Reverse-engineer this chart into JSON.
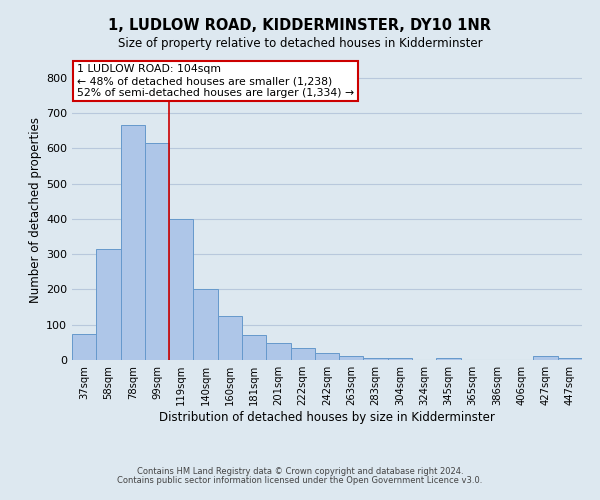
{
  "title": "1, LUDLOW ROAD, KIDDERMINSTER, DY10 1NR",
  "subtitle": "Size of property relative to detached houses in Kidderminster",
  "xlabel": "Distribution of detached houses by size in Kidderminster",
  "ylabel": "Number of detached properties",
  "categories": [
    "37sqm",
    "58sqm",
    "78sqm",
    "99sqm",
    "119sqm",
    "140sqm",
    "160sqm",
    "181sqm",
    "201sqm",
    "222sqm",
    "242sqm",
    "263sqm",
    "283sqm",
    "304sqm",
    "324sqm",
    "345sqm",
    "365sqm",
    "386sqm",
    "406sqm",
    "427sqm",
    "447sqm"
  ],
  "values": [
    75,
    315,
    665,
    615,
    400,
    200,
    125,
    70,
    48,
    35,
    20,
    12,
    7,
    5,
    0,
    7,
    0,
    0,
    0,
    10,
    5
  ],
  "bar_color": "#aec6e8",
  "bar_edge_color": "#6699cc",
  "grid_color": "#b8c8dc",
  "bg_color": "#dde8f0",
  "annotation_line1": "1 LUDLOW ROAD: 104sqm",
  "annotation_line2": "← 48% of detached houses are smaller (1,238)",
  "annotation_line3": "52% of semi-detached houses are larger (1,334) →",
  "annotation_box_color": "white",
  "annotation_border_color": "#cc0000",
  "vline_color": "#cc0000",
  "ylim": [
    0,
    850
  ],
  "yticks": [
    0,
    100,
    200,
    300,
    400,
    500,
    600,
    700,
    800
  ],
  "footnote1": "Contains HM Land Registry data © Crown copyright and database right 2024.",
  "footnote2": "Contains public sector information licensed under the Open Government Licence v3.0."
}
